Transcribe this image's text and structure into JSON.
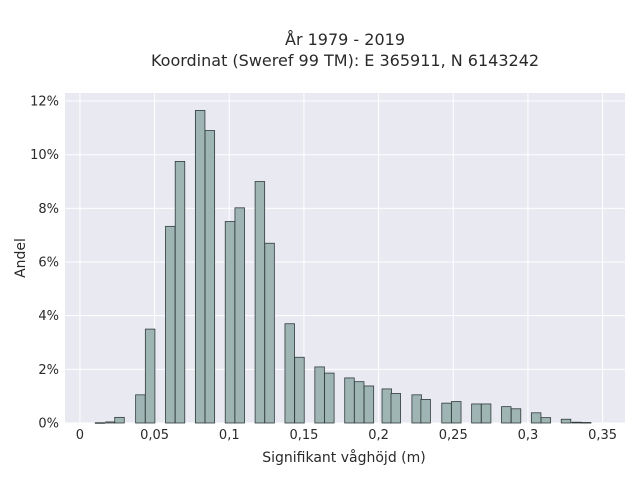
{
  "chart_data": {
    "type": "bar",
    "title_lines": [
      "År 1979 - 2019",
      "Koordinat (Sweref 99 TM): E 365911, N 6143242"
    ],
    "xlabel": "Signifikant våghöjd (m)",
    "ylabel": "Andel",
    "xlim": [
      -0.01,
      0.365
    ],
    "ylim": [
      0,
      0.123
    ],
    "x_ticks": [
      0,
      0.05,
      0.1,
      0.15,
      0.2,
      0.25,
      0.3,
      0.35
    ],
    "x_tick_labels": [
      "0",
      "0,05",
      "0,1",
      "0,15",
      "0,2",
      "0,25",
      "0,3",
      "0,35"
    ],
    "y_ticks": [
      0,
      0.02,
      0.04,
      0.06,
      0.08,
      0.1,
      0.12
    ],
    "y_tick_labels": [
      "0%",
      "2%",
      "4%",
      "6%",
      "8%",
      "10%",
      "12%"
    ],
    "grid": true,
    "colors": {
      "background": "#e9e9f1",
      "bar_fill": "#9fb5b4",
      "bar_edge": "#2f3b3b",
      "grid": "#ffffff"
    },
    "bar_width": 0.0064,
    "bars": [
      {
        "x": 0.0135,
        "value": 0.0001
      },
      {
        "x": 0.0205,
        "value": 0.0004
      },
      {
        "x": 0.0265,
        "value": 0.0021
      },
      {
        "x": 0.0405,
        "value": 0.0105
      },
      {
        "x": 0.047,
        "value": 0.035
      },
      {
        "x": 0.0605,
        "value": 0.0733
      },
      {
        "x": 0.067,
        "value": 0.0975
      },
      {
        "x": 0.0805,
        "value": 0.1165
      },
      {
        "x": 0.087,
        "value": 0.109
      },
      {
        "x": 0.1005,
        "value": 0.0751
      },
      {
        "x": 0.107,
        "value": 0.0802
      },
      {
        "x": 0.1205,
        "value": 0.09
      },
      {
        "x": 0.127,
        "value": 0.067
      },
      {
        "x": 0.1405,
        "value": 0.037
      },
      {
        "x": 0.147,
        "value": 0.0245
      },
      {
        "x": 0.1605,
        "value": 0.0209
      },
      {
        "x": 0.167,
        "value": 0.0186
      },
      {
        "x": 0.1805,
        "value": 0.0168
      },
      {
        "x": 0.187,
        "value": 0.0154
      },
      {
        "x": 0.1935,
        "value": 0.0138
      },
      {
        "x": 0.2055,
        "value": 0.0127
      },
      {
        "x": 0.2115,
        "value": 0.011
      },
      {
        "x": 0.2255,
        "value": 0.0105
      },
      {
        "x": 0.2315,
        "value": 0.0088
      },
      {
        "x": 0.2455,
        "value": 0.0074
      },
      {
        "x": 0.252,
        "value": 0.008
      },
      {
        "x": 0.2655,
        "value": 0.0071
      },
      {
        "x": 0.272,
        "value": 0.0071
      },
      {
        "x": 0.2855,
        "value": 0.0061
      },
      {
        "x": 0.292,
        "value": 0.0053
      },
      {
        "x": 0.3055,
        "value": 0.0038
      },
      {
        "x": 0.312,
        "value": 0.002
      },
      {
        "x": 0.3255,
        "value": 0.0014
      },
      {
        "x": 0.3325,
        "value": 0.0003
      },
      {
        "x": 0.339,
        "value": 0.0002
      }
    ]
  }
}
